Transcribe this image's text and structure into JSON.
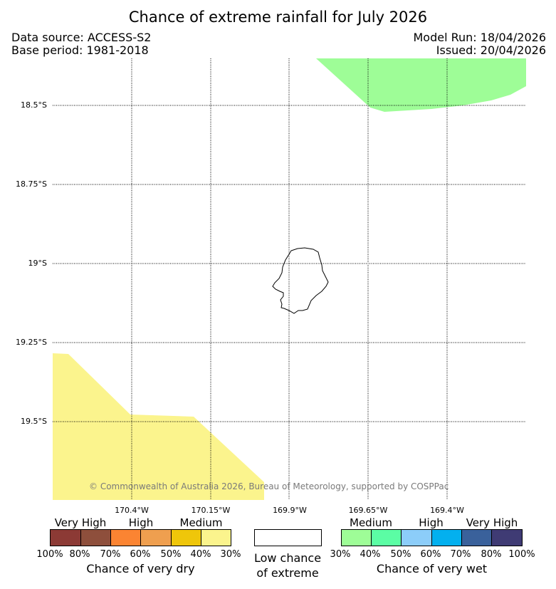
{
  "header": {
    "title": "Chance of extreme rainfall for July 2026",
    "data_source": "Data source: ACCESS-S2",
    "base_period": "Base period: 1981-2018",
    "model_run": "Model Run: 18/04/2026",
    "issued": "Issued: 20/04/2026"
  },
  "map": {
    "lat_labels": [
      "18.5°S",
      "18.75°S",
      "19°S",
      "19.25°S",
      "19.5°S"
    ],
    "lon_labels": [
      "170.4°W",
      "170.15°W",
      "169.9°W",
      "169.65°W",
      "169.4°W"
    ],
    "copyright": "© Commonwealth of Australia 2026, Bureau of Meteorology, supported by COSPPac",
    "regions": [
      {
        "name": "wet-medium-region",
        "category": "Chance of very wet - Medium",
        "color": "#9efd97"
      },
      {
        "name": "dry-medium-region",
        "category": "Chance of very dry - Medium",
        "color": "#fbf48d"
      }
    ],
    "island_color": "#000000"
  },
  "legend": {
    "dry": {
      "categories": [
        "Very High",
        "High",
        "Medium"
      ],
      "colors": [
        "#8c3a35",
        "#8e4f3c",
        "#fb8432",
        "#ef9f4f",
        "#efc60a",
        "#fbf48d"
      ],
      "percent_labels": [
        "100%",
        "80%",
        "70%",
        "60%",
        "50%",
        "40%",
        "30%"
      ],
      "title": "Chance of very dry"
    },
    "low": {
      "color": "#ffffff",
      "title_line1": "Low chance",
      "title_line2": "of extreme"
    },
    "wet": {
      "categories": [
        "Medium",
        "High",
        "Very High"
      ],
      "colors": [
        "#9efd97",
        "#5bfda4",
        "#8ccdf9",
        "#03b0ef",
        "#3a619b",
        "#3f3b74"
      ],
      "percent_labels": [
        "30%",
        "40%",
        "50%",
        "60%",
        "70%",
        "80%",
        "100%"
      ],
      "title": "Chance of very wet"
    }
  }
}
